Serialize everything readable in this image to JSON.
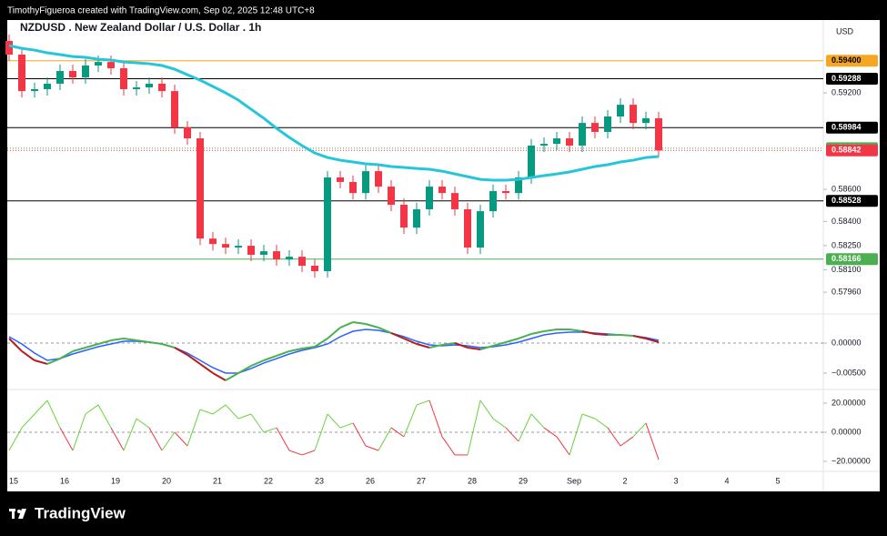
{
  "header": {
    "credit": "TimothyFigueroa created with TradingView.com, Sep 02, 2025 12:48 UTC+8"
  },
  "footer": {
    "logo": "TradingView"
  },
  "chart_data": {
    "type": "candlestick",
    "title": "NZDUSD . New Zealand Dollar / U.S. Dollar . 1h",
    "currency": "USD",
    "up_color": "#089981",
    "down_color": "#f23645",
    "ylim": [
      0.57825,
      0.59653
    ],
    "yticks": [
      {
        "value": 0.592,
        "label": "0.59200"
      },
      {
        "value": 0.586,
        "label": "0.58600"
      },
      {
        "value": 0.584,
        "label": "0.58400"
      },
      {
        "value": 0.5825,
        "label": "0.58250"
      },
      {
        "value": 0.581,
        "label": "0.58100"
      },
      {
        "value": 0.5796,
        "label": "0.57960"
      }
    ],
    "grid": false,
    "xticks": [
      "15",
      "16",
      "19",
      "20",
      "21",
      "22",
      "23",
      "26",
      "27",
      "28",
      "29",
      "Sep",
      "2",
      "3",
      "4",
      "5"
    ],
    "candles": {
      "open": [
        0.59523,
        0.59438,
        0.59211,
        0.59223,
        0.59257,
        0.59336,
        0.59296,
        0.5937,
        0.59392,
        0.59353,
        0.59223,
        0.59234,
        0.59257,
        0.59211,
        0.58985,
        0.58917,
        0.58294,
        0.5826,
        0.58238,
        0.58249,
        0.58193,
        0.58215,
        0.58164,
        0.58181,
        0.58125,
        0.58091,
        0.58674,
        0.58646,
        0.58577,
        0.58713,
        0.58617,
        0.58504,
        0.58362,
        0.58476,
        0.58617,
        0.58577,
        0.58476,
        0.58238,
        0.58464,
        0.58589,
        0.58577,
        0.58674,
        0.58872,
        0.58883,
        0.58917,
        0.58872,
        0.59013,
        0.58957,
        0.59053,
        0.59126,
        0.59013,
        0.59042
      ],
      "high": [
        0.59563,
        0.59478,
        0.59263,
        0.59297,
        0.59376,
        0.59376,
        0.5941,
        0.59432,
        0.59432,
        0.59393,
        0.59274,
        0.59297,
        0.59297,
        0.59251,
        0.59025,
        0.58957,
        0.58334,
        0.583,
        0.58289,
        0.58289,
        0.58255,
        0.58255,
        0.58221,
        0.58221,
        0.58165,
        0.58714,
        0.58714,
        0.58686,
        0.58753,
        0.58753,
        0.58657,
        0.58544,
        0.58516,
        0.58657,
        0.58657,
        0.58617,
        0.58516,
        0.58504,
        0.58629,
        0.58629,
        0.58714,
        0.58912,
        0.58923,
        0.58957,
        0.58957,
        0.59053,
        0.59053,
        0.59093,
        0.59166,
        0.59166,
        0.59082,
        0.59082
      ],
      "low": [
        0.59398,
        0.59171,
        0.59171,
        0.59183,
        0.59217,
        0.59256,
        0.59256,
        0.5933,
        0.59313,
        0.59183,
        0.59183,
        0.59194,
        0.59171,
        0.58945,
        0.58877,
        0.58254,
        0.5822,
        0.58198,
        0.58198,
        0.58153,
        0.58153,
        0.58124,
        0.58124,
        0.58085,
        0.58051,
        0.58051,
        0.58606,
        0.58537,
        0.58537,
        0.58577,
        0.58464,
        0.58322,
        0.58322,
        0.58436,
        0.58537,
        0.58436,
        0.58198,
        0.58198,
        0.58424,
        0.58537,
        0.58537,
        0.58634,
        0.58832,
        0.58843,
        0.58832,
        0.58832,
        0.58917,
        0.58917,
        0.59013,
        0.58973,
        0.58973,
        0.58802
      ],
      "close": [
        0.59438,
        0.59211,
        0.59223,
        0.59257,
        0.59336,
        0.59296,
        0.5937,
        0.59392,
        0.59353,
        0.59223,
        0.59234,
        0.59257,
        0.59211,
        0.58985,
        0.58917,
        0.58294,
        0.5826,
        0.58238,
        0.58249,
        0.58193,
        0.58215,
        0.58164,
        0.58181,
        0.58125,
        0.58091,
        0.58674,
        0.58646,
        0.58577,
        0.58713,
        0.58617,
        0.58504,
        0.58362,
        0.58476,
        0.58617,
        0.58577,
        0.58476,
        0.58238,
        0.58464,
        0.58589,
        0.58577,
        0.58674,
        0.58872,
        0.58883,
        0.58917,
        0.58872,
        0.59013,
        0.58957,
        0.59053,
        0.59126,
        0.59013,
        0.59042,
        0.58842
      ]
    },
    "moving_average": {
      "color": "#26c6da",
      "values": [
        0.59494,
        0.59477,
        0.59466,
        0.59449,
        0.59438,
        0.59426,
        0.59421,
        0.59409,
        0.59404,
        0.59392,
        0.59387,
        0.59381,
        0.5937,
        0.59347,
        0.59313,
        0.59279,
        0.5924,
        0.592,
        0.59155,
        0.59098,
        0.59042,
        0.58979,
        0.58923,
        0.58872,
        0.58826,
        0.58798,
        0.58781,
        0.5877,
        0.58759,
        0.58753,
        0.58742,
        0.58736,
        0.5873,
        0.58725,
        0.58713,
        0.58696,
        0.58679,
        0.58662,
        0.58657,
        0.58657,
        0.58662,
        0.58674,
        0.58685,
        0.58696,
        0.58708,
        0.58725,
        0.58742,
        0.58753,
        0.5877,
        0.58781,
        0.58798,
        0.58804
      ]
    },
    "levels": [
      {
        "value": 0.594,
        "label": "0.59400",
        "color": "#f5a623",
        "text_color": "#000000",
        "dashed": false
      },
      {
        "value": 0.59288,
        "label": "0.59288",
        "color": "#000000",
        "text_color": "#ffffff",
        "dashed": false
      },
      {
        "value": 0.58984,
        "label": "0.58984",
        "color": "#000000",
        "text_color": "#ffffff",
        "dashed": false
      },
      {
        "value": 0.58856,
        "label": "0.58856",
        "color": "#4caf50",
        "text_color": "#ffffff",
        "dashed": true
      },
      {
        "value": 0.58842,
        "label": "0.58842",
        "color": "#f23645",
        "text_color": "#ffffff",
        "dashed": true
      },
      {
        "value": 0.58528,
        "label": "0.58528",
        "color": "#000000",
        "text_color": "#ffffff",
        "dashed": false
      },
      {
        "value": 0.58166,
        "label": "0.58166",
        "color": "#4caf50",
        "text_color": "#ffffff",
        "dashed": false
      }
    ],
    "macd": {
      "ylim": [
        -0.00773,
        0.00485
      ],
      "yticks": [
        {
          "value": 0,
          "label": "0.00000"
        },
        {
          "value": -0.005,
          "label": "−0.00500"
        }
      ],
      "rising_color": "#4caf50",
      "falling_color": "#b71c1c",
      "signal_color": "#2962ff",
      "values": [
        0.00076,
        -0.00136,
        -0.00288,
        -0.00348,
        -0.00258,
        -0.00136,
        -0.00076,
        -0.00015,
        0.00045,
        0.00076,
        0.00045,
        0.00015,
        -0.00015,
        -0.00076,
        -0.00197,
        -0.00348,
        -0.005,
        -0.00621,
        -0.005,
        -0.00379,
        -0.00288,
        -0.00212,
        -0.00136,
        -0.00091,
        -0.00061,
        0.00076,
        0.00258,
        0.00348,
        0.00318,
        0.00258,
        0.00167,
        0.00076,
        -0.00015,
        -0.00076,
        -0.0003,
        0,
        -0.00076,
        -0.00106,
        -0.00045,
        0.00015,
        0.00076,
        0.00152,
        0.00197,
        0.00227,
        0.00227,
        0.00197,
        0.00152,
        0.00136,
        0.00136,
        0.00121,
        0.00076,
        0.00015
      ],
      "signal": [
        0.00106,
        -0.00015,
        -0.00167,
        -0.00288,
        -0.00258,
        -0.00182,
        -0.00121,
        -0.00061,
        -0.00015,
        0.0003,
        0.0003,
        0.00015,
        -0.00015,
        -0.00076,
        -0.00167,
        -0.00288,
        -0.00409,
        -0.005,
        -0.005,
        -0.00424,
        -0.00333,
        -0.00258,
        -0.00182,
        -0.00121,
        -0.00076,
        -0.00015,
        0.00106,
        0.00197,
        0.00227,
        0.00212,
        0.00167,
        0.00106,
        0.0003,
        -0.0003,
        -0.00045,
        -0.0003,
        -0.00045,
        -0.00076,
        -0.00061,
        -0.0003,
        0.00015,
        0.00076,
        0.00136,
        0.00167,
        0.00182,
        0.00182,
        0.00167,
        0.00152,
        0.00136,
        0.00121,
        0.00091,
        0.00045
      ]
    },
    "oscillator": {
      "ylim": [
        -26.9,
        29.4
      ],
      "yticks": [
        {
          "value": 20,
          "label": "20.00000"
        },
        {
          "value": 0,
          "label": "0.00000"
        },
        {
          "value": -20,
          "label": "−20.00000"
        }
      ],
      "positive_color": "#66d33a",
      "negative_color": "#f23645",
      "values": [
        -12.5,
        3.1,
        12.5,
        21.9,
        3.1,
        -12.5,
        12.5,
        18.8,
        3.1,
        -12.5,
        9.4,
        3.1,
        -12.5,
        0,
        -9.4,
        15.6,
        12.5,
        18.8,
        9.4,
        12.5,
        0,
        3.1,
        -12.5,
        -15.6,
        -12.5,
        12.5,
        3.1,
        6.3,
        -9.4,
        -12.5,
        3.1,
        -3.1,
        18.8,
        21.9,
        -3.1,
        -15.6,
        -15.6,
        21.9,
        9.4,
        3.1,
        -6.3,
        12.5,
        3.1,
        -3.1,
        -15.6,
        12.5,
        9.4,
        3.1,
        -9.4,
        -3.1,
        6.3,
        -18.8
      ]
    }
  }
}
